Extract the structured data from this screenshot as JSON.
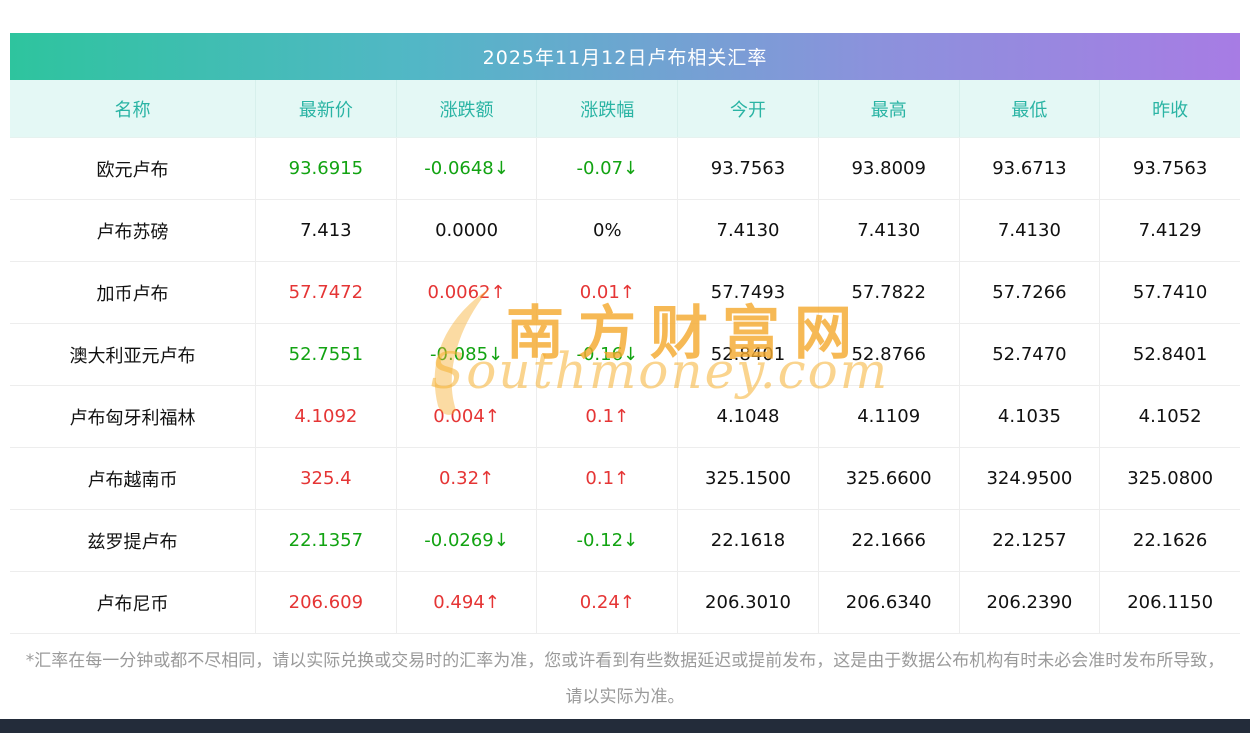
{
  "header": {
    "title": "2025年11月12日卢布相关汇率"
  },
  "chart_data": {
    "type": "table",
    "columns": [
      "名称",
      "最新价",
      "涨跌额",
      "涨跌幅",
      "今开",
      "最高",
      "最低",
      "昨收"
    ],
    "rows": [
      {
        "name": "欧元卢布",
        "latest": "93.6915",
        "change": "-0.0648↓",
        "change_pct": "-0.07↓",
        "open": "93.7563",
        "high": "93.8009",
        "low": "93.6713",
        "prev_close": "93.7563",
        "trend": "down"
      },
      {
        "name": "卢布苏磅",
        "latest": "7.413",
        "change": "0.0000",
        "change_pct": "0%",
        "open": "7.4130",
        "high": "7.4130",
        "low": "7.4130",
        "prev_close": "7.4129",
        "trend": "flat"
      },
      {
        "name": "加币卢布",
        "latest": "57.7472",
        "change": "0.0062↑",
        "change_pct": "0.01↑",
        "open": "57.7493",
        "high": "57.7822",
        "low": "57.7266",
        "prev_close": "57.7410",
        "trend": "up"
      },
      {
        "name": "澳大利亚元卢布",
        "latest": "52.7551",
        "change": "-0.085↓",
        "change_pct": "-0.16↓",
        "open": "52.8401",
        "high": "52.8766",
        "low": "52.7470",
        "prev_close": "52.8401",
        "trend": "down"
      },
      {
        "name": "卢布匈牙利福林",
        "latest": "4.1092",
        "change": "0.004↑",
        "change_pct": "0.1↑",
        "open": "4.1048",
        "high": "4.1109",
        "low": "4.1035",
        "prev_close": "4.1052",
        "trend": "up"
      },
      {
        "name": "卢布越南币",
        "latest": "325.4",
        "change": "0.32↑",
        "change_pct": "0.1↑",
        "open": "325.1500",
        "high": "325.6600",
        "low": "324.9500",
        "prev_close": "325.0800",
        "trend": "up"
      },
      {
        "name": "兹罗提卢布",
        "latest": "22.1357",
        "change": "-0.0269↓",
        "change_pct": "-0.12↓",
        "open": "22.1618",
        "high": "22.1666",
        "low": "22.1257",
        "prev_close": "22.1626",
        "trend": "down"
      },
      {
        "name": "卢布尼币",
        "latest": "206.609",
        "change": "0.494↑",
        "change_pct": "0.24↑",
        "open": "206.3010",
        "high": "206.6340",
        "low": "206.2390",
        "prev_close": "206.1150",
        "trend": "up"
      }
    ]
  },
  "watermark": {
    "cn": "南方财富网",
    "en": "Southmoney.com"
  },
  "footer": {
    "note": "*汇率在每一分钟或都不尽相同，请以实际兑换或交易时的汇率为准，您或许看到有些数据延迟或提前发布，这是由于数据公布机构有时未必会准时发布所导致，请以实际为准。"
  },
  "colors": {
    "up": "#e53535",
    "down": "#12a312",
    "flat": "#111111",
    "title_gradient_left": "#2ec49e",
    "title_gradient_right": "#a77ce4",
    "table_head_bg": "#e4f8f5",
    "table_head_text": "#2ab4a4",
    "watermark_orange": "#f4aa30",
    "bottom_bar": "#232c3a"
  }
}
